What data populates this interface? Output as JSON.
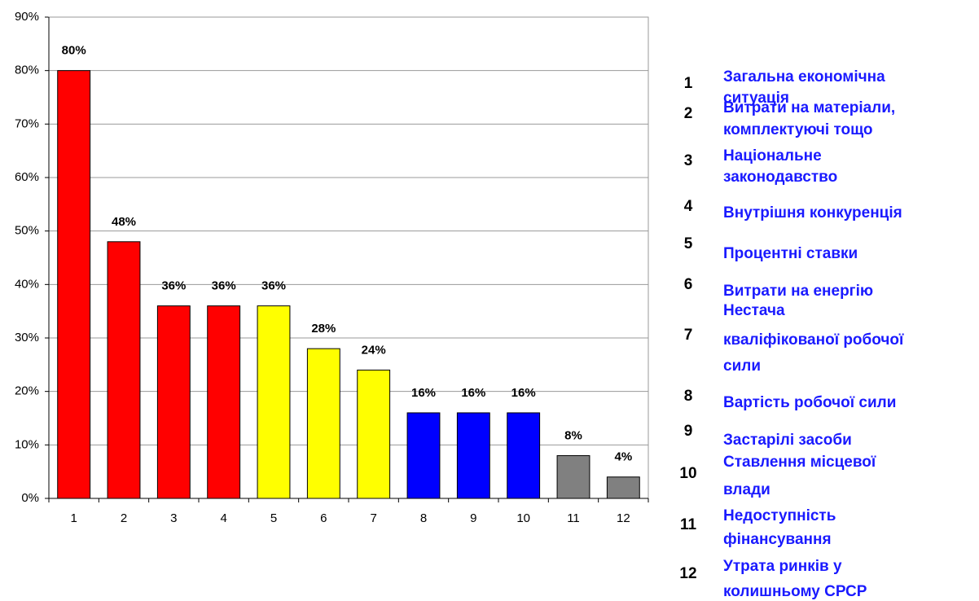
{
  "chart_data": {
    "type": "bar",
    "categories": [
      "1",
      "2",
      "3",
      "4",
      "5",
      "6",
      "7",
      "8",
      "9",
      "10",
      "11",
      "12"
    ],
    "values": [
      80,
      48,
      36,
      36,
      36,
      28,
      24,
      16,
      16,
      16,
      8,
      4
    ],
    "value_labels": [
      "80%",
      "48%",
      "36%",
      "36%",
      "36%",
      "28%",
      "24%",
      "16%",
      "16%",
      "16%",
      "8%",
      "4%"
    ],
    "colors": [
      "#ff0000",
      "#ff0000",
      "#ff0000",
      "#ff0000",
      "#ffff00",
      "#ffff00",
      "#ffff00",
      "#0000ff",
      "#0000ff",
      "#0000ff",
      "#808080",
      "#808080"
    ],
    "ylim": [
      0,
      90
    ],
    "yticks": [
      {
        "value": 0,
        "label": "0%"
      },
      {
        "value": 10,
        "label": "10%"
      },
      {
        "value": 20,
        "label": "20%"
      },
      {
        "value": 30,
        "label": "30%"
      },
      {
        "value": 40,
        "label": "40%"
      },
      {
        "value": 50,
        "label": "50%"
      },
      {
        "value": 60,
        "label": "60%"
      },
      {
        "value": 70,
        "label": "70%"
      },
      {
        "value": 80,
        "label": "80%"
      },
      {
        "value": 90,
        "label": "90%"
      }
    ],
    "grid": true,
    "legend_labels": [
      [
        "Загальна економічна",
        "ситуація"
      ],
      [
        "Витрати на матеріали,",
        "комплектуючі тощо"
      ],
      [
        "Національне",
        "законодавство"
      ],
      [
        "Внутрішня конкуренція"
      ],
      [
        "Процентні ставки"
      ],
      [
        "Витрати на енергію"
      ],
      [
        "Нестача",
        "кваліфікованої робочої",
        "сили"
      ],
      [
        "Вартість робочої сили"
      ],
      [
        "Застарілі засоби"
      ],
      [
        "Ставлення місцевої",
        "влади"
      ],
      [
        "Недоступність",
        "фінансування"
      ],
      [
        "Утрата ринків у",
        "колишньому СРСР"
      ]
    ]
  }
}
